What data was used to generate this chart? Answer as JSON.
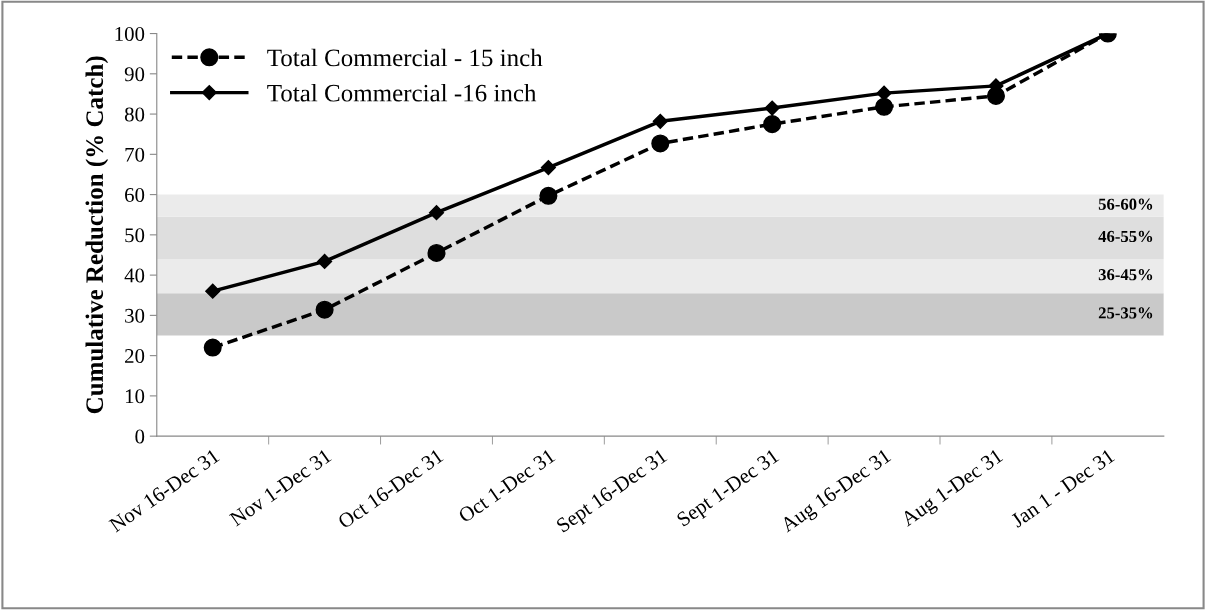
{
  "chart_data": {
    "type": "line",
    "ylabel": "Cumulative Reduction (% Catch)",
    "categories": [
      "Nov 16-Dec 31",
      "Nov 1-Dec 31",
      "Oct 16-Dec 31",
      "Oct 1-Dec 31",
      "Sept 16-Dec 31",
      "Sept 1-Dec 31",
      "Aug 16-Dec 31",
      "Aug 1-Dec 31",
      "Jan 1 - Dec 31"
    ],
    "series": [
      {
        "name": "Total Commercial - 15 inch",
        "color": "#000000",
        "marker": "circle",
        "line_style": "dashed",
        "values": [
          22,
          31.4,
          45.5,
          59.7,
          72.7,
          77.5,
          81.8,
          84.5,
          100
        ]
      },
      {
        "name": "Total Commercial -16 inch",
        "color": "#000000",
        "marker": "diamond",
        "line_style": "solid",
        "values": [
          36,
          43.4,
          55.5,
          66.7,
          78.2,
          81.5,
          85.2,
          87,
          100
        ]
      }
    ],
    "ylim": [
      0,
      100
    ],
    "yticks": [
      0,
      10,
      20,
      30,
      40,
      50,
      60,
      70,
      80,
      90,
      100
    ],
    "bands": [
      {
        "axis": "y",
        "from": 25,
        "to": 35.5,
        "label": "25-35%",
        "color": "#c9c9c9"
      },
      {
        "axis": "y",
        "from": 35.5,
        "to": 44,
        "label": "36-45%",
        "color": "#ebebeb"
      },
      {
        "axis": "y",
        "from": 44,
        "to": 54.5,
        "label": "46-55%",
        "color": "#dedede"
      },
      {
        "axis": "y",
        "from": 54.5,
        "to": 60,
        "label": "56-60%",
        "color": "#ebebeb"
      }
    ],
    "grid": false,
    "legend": "top left"
  }
}
